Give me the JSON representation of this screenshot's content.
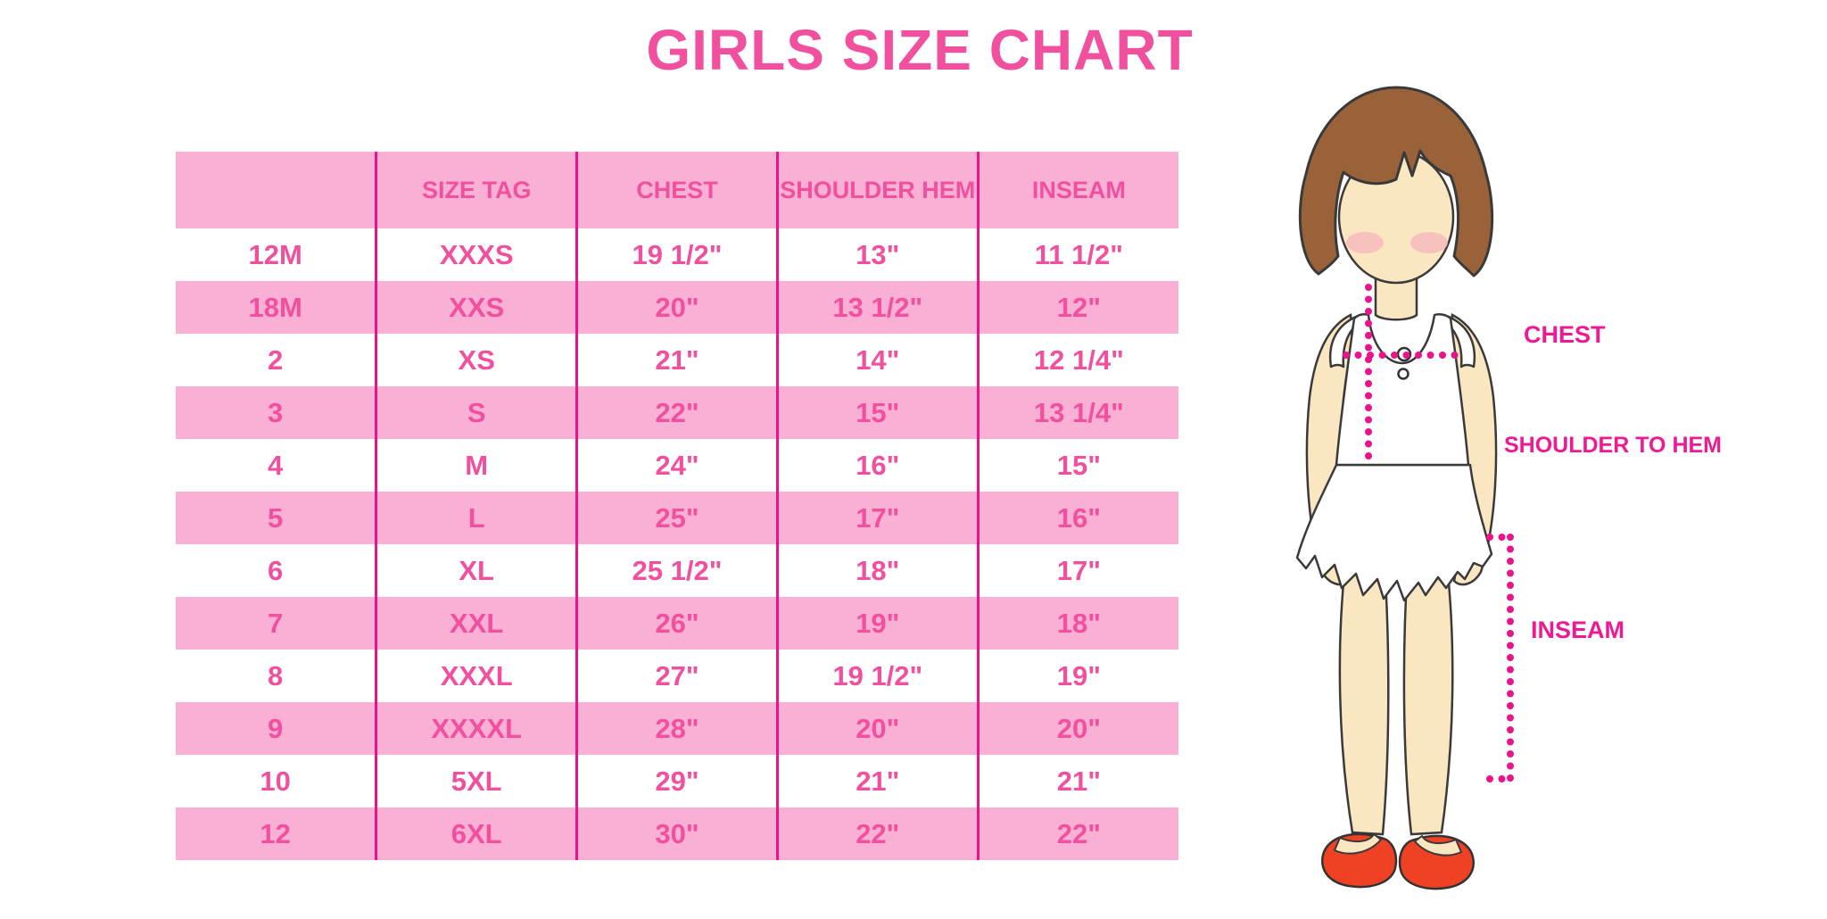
{
  "title": "GIRLS SIZE CHART",
  "chart_data": {
    "type": "table",
    "title": "GIRLS SIZE CHART",
    "columns": [
      "",
      "SIZE TAG",
      "CHEST",
      "SHOULDER HEM",
      "INSEAM"
    ],
    "rows": [
      [
        "12M",
        "XXXS",
        "19 1/2\"",
        "13\"",
        "11 1/2\""
      ],
      [
        "18M",
        "XXS",
        "20\"",
        "13 1/2\"",
        "12\""
      ],
      [
        "2",
        "XS",
        "21\"",
        "14\"",
        "12 1/4\""
      ],
      [
        "3",
        "S",
        "22\"",
        "15\"",
        "13 1/4\""
      ],
      [
        "4",
        "M",
        "24\"",
        "16\"",
        "15\""
      ],
      [
        "5",
        "L",
        "25\"",
        "17\"",
        "16\""
      ],
      [
        "6",
        "XL",
        "25 1/2\"",
        "18\"",
        "17\""
      ],
      [
        "7",
        "XXL",
        "26\"",
        "19\"",
        "18\""
      ],
      [
        "8",
        "XXXL",
        "27\"",
        "19 1/2\"",
        "19\""
      ],
      [
        "9",
        "XXXXL",
        "28\"",
        "20\"",
        "20\""
      ],
      [
        "10",
        "5XL",
        "29\"",
        "21\"",
        "21\""
      ],
      [
        "12",
        "6XL",
        "30\"",
        "22\"",
        "22\""
      ]
    ]
  },
  "diagram": {
    "labels": {
      "chest": "CHEST",
      "shoulder_to_hem": "SHOULDER TO HEM",
      "inseam": "INSEAM"
    }
  },
  "colors": {
    "title": "#F0509E",
    "row_pink": "#FAAFD5",
    "cell_text": "#F0509E",
    "divider": "#E9138C",
    "label": "#ED1A94",
    "hair": "#9A6239",
    "skin": "#FAE6C0",
    "shoe": "#EF4123"
  }
}
